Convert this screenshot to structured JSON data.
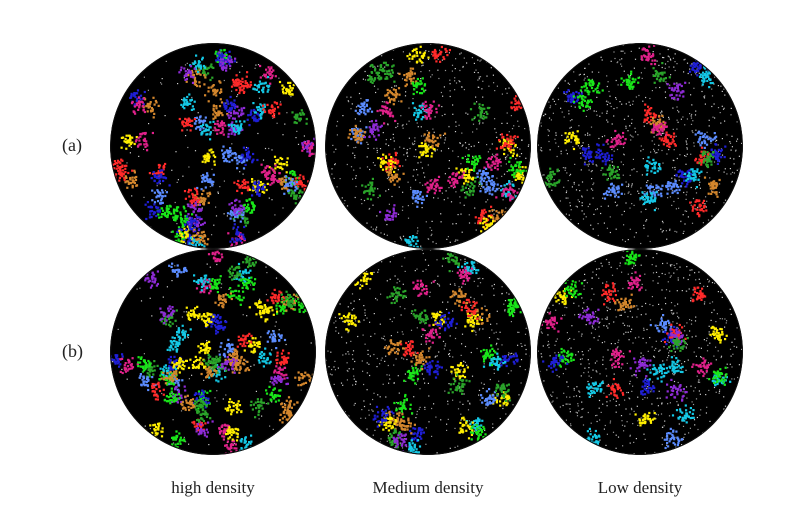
{
  "row_labels": [
    "(a)",
    "(b)"
  ],
  "column_labels": [
    "high density",
    "Medium density",
    "Low density"
  ],
  "palette": [
    "#ff2a2a",
    "#19e619",
    "#1f1fd6",
    "#ffee00",
    "#14c9e6",
    "#e0218a",
    "#d4872d",
    "#5b8cff",
    "#8e2bd6",
    "#2aa52a"
  ],
  "panels": [
    {
      "row": 0,
      "col": 0,
      "density": "high"
    },
    {
      "row": 0,
      "col": 1,
      "density": "medium"
    },
    {
      "row": 0,
      "col": 2,
      "density": "low"
    },
    {
      "row": 1,
      "col": 0,
      "density": "high"
    },
    {
      "row": 1,
      "col": 1,
      "density": "medium"
    },
    {
      "row": 1,
      "col": 2,
      "density": "low"
    }
  ]
}
